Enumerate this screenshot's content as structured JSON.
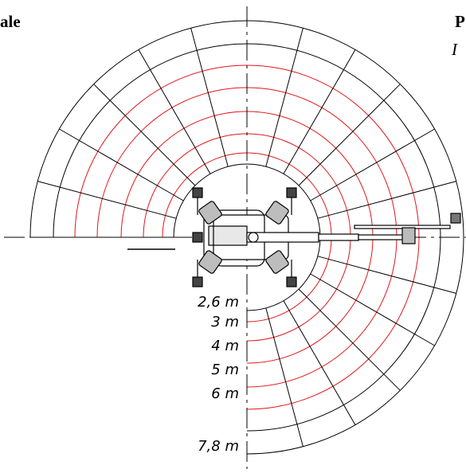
{
  "header": {
    "left_text": "ale",
    "right_text": "P",
    "right_subtext": "I"
  },
  "radius_labels": [
    "2,6 m",
    "3 m",
    "4 m",
    "5 m",
    "6 m",
    "7,8 m"
  ],
  "colors": {
    "outline": "#000000",
    "red_arcs": "#e0161b",
    "background": "#ffffff"
  }
}
